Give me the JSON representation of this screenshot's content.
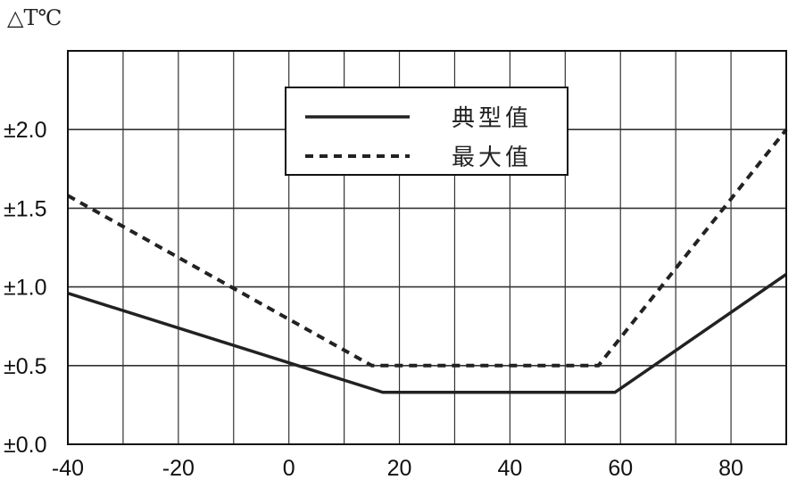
{
  "chart_data": {
    "type": "line",
    "ylabel": "△T℃",
    "xlabel": "",
    "xlim": [
      -40,
      90
    ],
    "ylim": [
      0,
      2.5
    ],
    "grid": true,
    "legend_position": "top-center",
    "x_gridlines": [
      -40,
      -30,
      -20,
      -10,
      0,
      10,
      20,
      30,
      40,
      50,
      60,
      70,
      80,
      90
    ],
    "y_gridlines": [
      0.0,
      0.5,
      1.0,
      1.5,
      2.0,
      2.5
    ],
    "x_ticks": [
      -40,
      -20,
      0,
      20,
      40,
      60,
      80
    ],
    "x_tick_labels": [
      "-40",
      "-20",
      "0",
      "20",
      "40",
      "60",
      "80"
    ],
    "y_ticks": [
      0.0,
      0.5,
      1.0,
      1.5,
      2.0
    ],
    "y_tick_labels": [
      "±0.0",
      "±0.5",
      "±1.0",
      "±1.5",
      "±2.0"
    ],
    "series": [
      {
        "name": "典型值",
        "style": "solid",
        "color": "#222222",
        "points": [
          [
            -40,
            0.96
          ],
          [
            17,
            0.33
          ],
          [
            59,
            0.33
          ],
          [
            90,
            1.08
          ]
        ]
      },
      {
        "name": "最大值",
        "style": "dashed",
        "color": "#222222",
        "points": [
          [
            -40,
            1.58
          ],
          [
            15,
            0.5
          ],
          [
            56,
            0.5
          ],
          [
            90,
            2.0
          ]
        ]
      }
    ]
  }
}
